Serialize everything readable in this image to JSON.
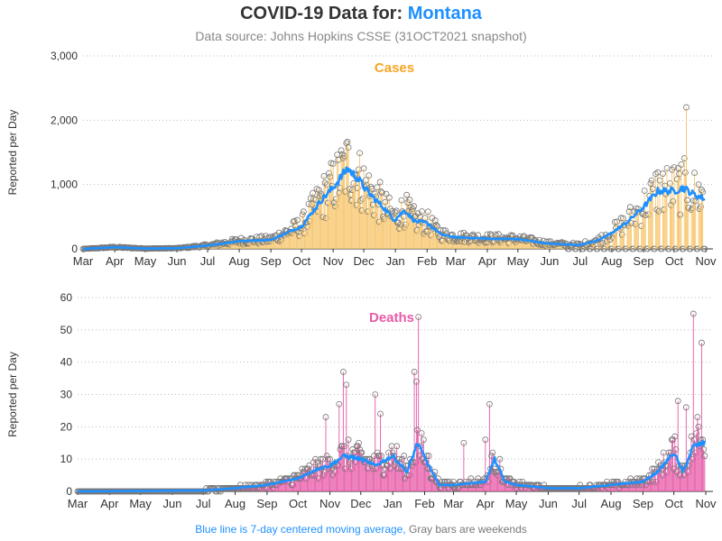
{
  "header": {
    "title_prefix": "COVID-19 Data for:",
    "state": "Montana",
    "subtitle": "Data source: Johns Hopkins CSSE (31OCT2021 snapshot)"
  },
  "footer": {
    "blue_note": "Blue line is 7-day centered moving average,",
    "gray_note": "Gray bars are weekends"
  },
  "colors": {
    "cases": "#f5a623",
    "cases_bar": "#f7c56b",
    "deaths": "#e85aa8",
    "moving_average": "#1e90ff",
    "weekend": "#999999"
  },
  "chart_data": [
    {
      "type": "bar",
      "title": "Cases",
      "ylabel": "Reported per Day",
      "ylim": [
        0,
        3000
      ],
      "yticks": [
        "0",
        "1,000",
        "2,000",
        "3,000"
      ],
      "xticks": [
        "Mar",
        "Apr",
        "May",
        "Jun",
        "Jul",
        "Aug",
        "Sep",
        "Oct",
        "Nov",
        "Dec",
        "Jan",
        "Feb",
        "Mar",
        "Apr",
        "May",
        "Jun",
        "Jul",
        "Aug",
        "Sep",
        "Oct",
        "Nov"
      ],
      "grid": "horizontal dotted",
      "x_start": "2020-03-01",
      "x_end": "2021-11-01",
      "moving_average_anchors": [
        [
          "2020-03-01",
          0
        ],
        [
          "2020-04-01",
          25
        ],
        [
          "2020-05-01",
          5
        ],
        [
          "2020-06-01",
          10
        ],
        [
          "2020-07-01",
          50
        ],
        [
          "2020-08-01",
          120
        ],
        [
          "2020-09-01",
          140
        ],
        [
          "2020-10-01",
          350
        ],
        [
          "2020-10-20",
          750
        ],
        [
          "2020-11-01",
          950
        ],
        [
          "2020-11-15",
          1250
        ],
        [
          "2020-11-25",
          1100
        ],
        [
          "2020-12-05",
          880
        ],
        [
          "2020-12-20",
          650
        ],
        [
          "2020-12-31",
          450
        ],
        [
          "2021-01-10",
          600
        ],
        [
          "2021-01-20",
          430
        ],
        [
          "2021-02-01",
          400
        ],
        [
          "2021-02-15",
          220
        ],
        [
          "2021-03-01",
          180
        ],
        [
          "2021-04-01",
          160
        ],
        [
          "2021-05-01",
          150
        ],
        [
          "2021-06-01",
          80
        ],
        [
          "2021-07-01",
          60
        ],
        [
          "2021-07-20",
          140
        ],
        [
          "2021-08-01",
          250
        ],
        [
          "2021-08-15",
          400
        ],
        [
          "2021-09-01",
          650
        ],
        [
          "2021-09-15",
          900
        ],
        [
          "2021-10-01",
          900
        ],
        [
          "2021-10-10",
          950
        ],
        [
          "2021-10-20",
          850
        ],
        [
          "2021-10-31",
          780
        ]
      ],
      "peak_value": 2200,
      "peak_date": "2021-10-13"
    },
    {
      "type": "bar",
      "title": "Deaths",
      "ylabel": "Reported per Day",
      "ylim": [
        0,
        60
      ],
      "yticks": [
        "0",
        "10",
        "20",
        "30",
        "40",
        "50",
        "60"
      ],
      "xticks": [
        "Mar",
        "Apr",
        "May",
        "Jun",
        "Jul",
        "Aug",
        "Sep",
        "Oct",
        "Nov",
        "Dec",
        "Jan",
        "Feb",
        "Mar",
        "Apr",
        "May",
        "Jun",
        "Jul",
        "Aug",
        "Sep",
        "Oct",
        "Nov"
      ],
      "grid": "horizontal dotted",
      "x_start": "2020-03-01",
      "x_end": "2021-11-01",
      "moving_average_anchors": [
        [
          "2020-03-01",
          0
        ],
        [
          "2020-07-01",
          0.3
        ],
        [
          "2020-08-01",
          1
        ],
        [
          "2020-09-01",
          2
        ],
        [
          "2020-10-01",
          4
        ],
        [
          "2020-10-20",
          7
        ],
        [
          "2020-11-01",
          8
        ],
        [
          "2020-11-15",
          11
        ],
        [
          "2020-12-01",
          10
        ],
        [
          "2020-12-15",
          8
        ],
        [
          "2021-01-01",
          11
        ],
        [
          "2021-01-15",
          6
        ],
        [
          "2021-01-25",
          15
        ],
        [
          "2021-02-05",
          8
        ],
        [
          "2021-02-15",
          2
        ],
        [
          "2021-03-01",
          2
        ],
        [
          "2021-04-01",
          3
        ],
        [
          "2021-04-10",
          10
        ],
        [
          "2021-04-20",
          3
        ],
        [
          "2021-05-01",
          2
        ],
        [
          "2021-06-01",
          1
        ],
        [
          "2021-07-01",
          1
        ],
        [
          "2021-08-01",
          2
        ],
        [
          "2021-09-01",
          3
        ],
        [
          "2021-09-15",
          6
        ],
        [
          "2021-10-01",
          12
        ],
        [
          "2021-10-10",
          6
        ],
        [
          "2021-10-20",
          14
        ],
        [
          "2021-10-31",
          15
        ]
      ],
      "peak_value": 55,
      "peak_date": "2021-10-20",
      "spikes": [
        [
          "2021-01-26",
          54
        ],
        [
          "2021-01-22",
          37
        ],
        [
          "2021-01-24",
          34
        ],
        [
          "2020-11-14",
          37
        ],
        [
          "2020-11-10",
          27
        ],
        [
          "2020-11-17",
          33
        ],
        [
          "2020-12-15",
          30
        ],
        [
          "2021-04-05",
          27
        ],
        [
          "2020-10-28",
          23
        ],
        [
          "2020-12-20",
          24
        ],
        [
          "2021-10-05",
          28
        ],
        [
          "2021-10-28",
          46
        ],
        [
          "2021-10-13",
          26
        ],
        [
          "2021-10-24",
          23
        ],
        [
          "2021-03-11",
          15
        ],
        [
          "2021-04-01",
          16
        ]
      ]
    }
  ]
}
